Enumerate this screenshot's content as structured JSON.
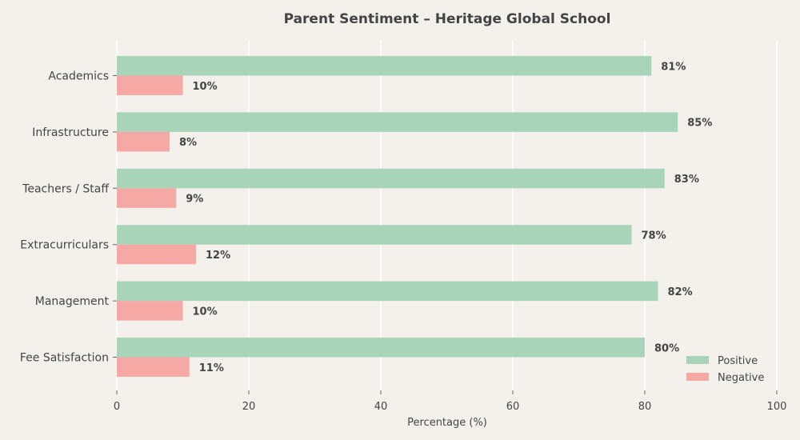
{
  "chart_data": {
    "type": "bar",
    "orientation": "horizontal",
    "title": "Parent Sentiment – Heritage Global School",
    "xlabel": "Percentage (%)",
    "ylabel": "",
    "xlim": [
      0,
      100
    ],
    "xticks": [
      0,
      20,
      40,
      60,
      80,
      100
    ],
    "grid": "vertical",
    "legend": "bottom-right",
    "categories": [
      "Academics",
      "Infrastructure",
      "Teachers / Staff",
      "Extracurriculars",
      "Management",
      "Fee Satisfaction"
    ],
    "series": [
      {
        "name": "Positive",
        "color": "#a8d5ba",
        "values": [
          81,
          85,
          83,
          78,
          82,
          80
        ]
      },
      {
        "name": "Negative",
        "color": "#f5a8a4",
        "values": [
          10,
          8,
          9,
          12,
          10,
          11
        ]
      }
    ],
    "value_suffix": "%"
  }
}
